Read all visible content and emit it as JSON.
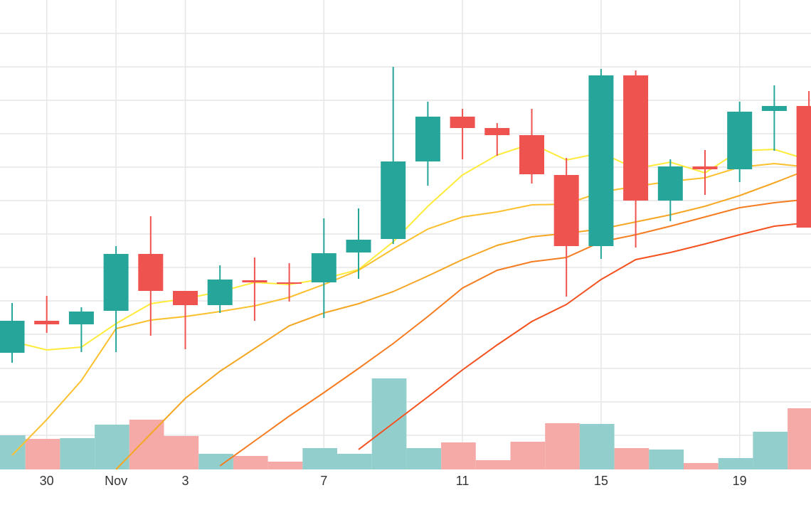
{
  "chart_data": {
    "type": "candlestick",
    "categories": [
      null,
      "30",
      null,
      "Nov",
      null,
      "3",
      null,
      null,
      null,
      "7",
      null,
      null,
      null,
      "11",
      null,
      null,
      null,
      "15",
      null,
      null,
      null,
      "19",
      null,
      null
    ],
    "open": [
      164,
      209,
      204,
      223,
      303,
      251,
      231,
      266,
      263,
      263,
      305,
      324,
      433,
      496,
      480,
      470,
      414,
      314,
      554,
      378,
      426,
      422,
      504,
      511
    ],
    "high": [
      234,
      244,
      228,
      314,
      356,
      251,
      287,
      298,
      290,
      353,
      367,
      566,
      517,
      507,
      487,
      507,
      438,
      563,
      561,
      436,
      449,
      517,
      540,
      532
    ],
    "low": [
      150,
      192,
      165,
      165,
      188,
      169,
      220,
      209,
      236,
      213,
      268,
      317,
      399,
      436,
      441,
      402,
      243,
      296,
      312,
      349,
      386,
      404,
      448,
      340
    ],
    "close": [
      209,
      204,
      222,
      303,
      251,
      231,
      267,
      263,
      262,
      304,
      323,
      433,
      496,
      480,
      470,
      415,
      314,
      554,
      378,
      426,
      422,
      503,
      511,
      340
    ],
    "up_color": "#26a69a",
    "down_color": "#ef5350",
    "volume": {
      "values": [
        48,
        43,
        44,
        63,
        70,
        47,
        22,
        19,
        11,
        30,
        22,
        128,
        30,
        38,
        13,
        39,
        65,
        64,
        30,
        28,
        9,
        16,
        53,
        86
      ],
      "up_color": "#92cfcc",
      "down_color": "#f5aaa8"
    },
    "lines": [
      {
        "color": "#ffeb3b",
        "values": [
          180,
          168,
          172,
          205,
          233,
          240,
          250,
          263,
          260,
          268,
          281,
          320,
          370,
          414,
          442,
          458,
          435,
          445,
          423,
          432,
          417,
          448,
          450,
          435
        ]
      },
      {
        "color": "#fbc02d",
        "values": [
          20,
          70,
          125,
          198,
          210,
          215,
          222,
          230,
          242,
          260,
          280,
          310,
          338,
          355,
          362,
          372,
          373,
          390,
          398,
          405,
          410,
          425,
          430,
          425
        ]
      },
      {
        "color": "#f5a623",
        "values": [
          null,
          null,
          null,
          0,
          50,
          100,
          138,
          170,
          202,
          220,
          233,
          250,
          272,
          295,
          315,
          327,
          332,
          338,
          348,
          358,
          370,
          385,
          403,
          422
        ]
      },
      {
        "color": "#f57c20",
        "values": [
          null,
          null,
          null,
          null,
          null,
          null,
          5,
          40,
          75,
          108,
          142,
          177,
          215,
          255,
          280,
          292,
          298,
          320,
          330,
          342,
          355,
          368,
          375,
          380
        ]
      },
      {
        "color": "#f4511e",
        "values": [
          null,
          null,
          null,
          null,
          null,
          null,
          null,
          null,
          null,
          null,
          28,
          65,
          102,
          140,
          175,
          208,
          232,
          267,
          295,
          305,
          317,
          330,
          342,
          347
        ]
      }
    ],
    "ylim": [
      0,
      660
    ],
    "ygrid": [
      48,
      95,
      142,
      190,
      237,
      284,
      331,
      378,
      425,
      472,
      519,
      566,
      613
    ],
    "grid": true
  }
}
